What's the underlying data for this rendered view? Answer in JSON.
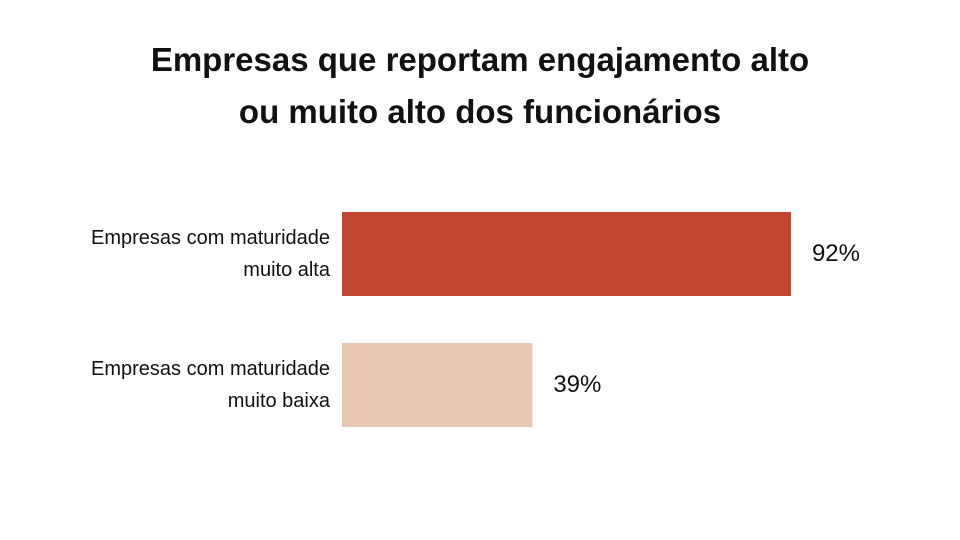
{
  "chart_data": {
    "type": "bar",
    "orientation": "horizontal",
    "title": "Empresas que reportam engajamento alto ou muito alto dos funcionários",
    "categories": [
      "Empresas com maturidade muito alta",
      "Empresas com maturidade muito baixa"
    ],
    "values": [
      92,
      39
    ],
    "value_labels": [
      "92%",
      "39%"
    ],
    "colors": [
      "#c0462f",
      "#e9c5b3"
    ]
  }
}
